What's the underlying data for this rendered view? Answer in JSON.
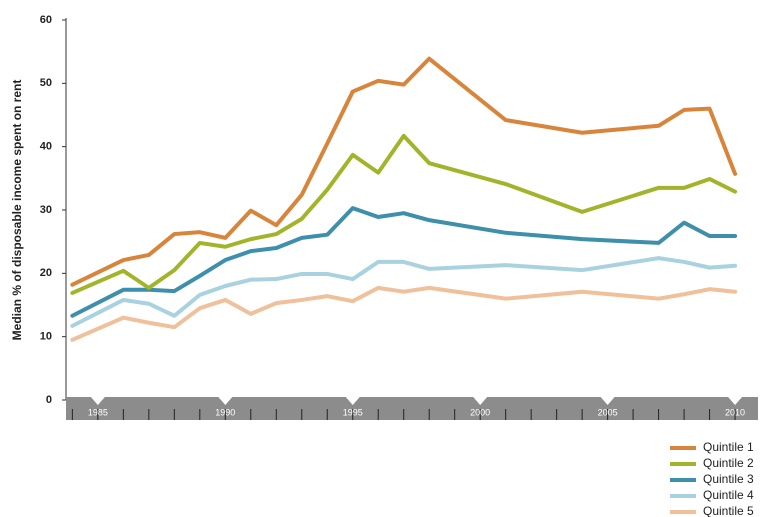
{
  "chart_data": {
    "type": "line",
    "y_label": "Median % of disposable income spent on rent",
    "x": [
      1984,
      1986,
      1987,
      1988,
      1989,
      1990,
      1991,
      1992,
      1993,
      1994,
      1995,
      1996,
      1997,
      1998,
      2001,
      2004,
      2007,
      2008,
      2009,
      2010
    ],
    "series": [
      {
        "name": "Quintile 1",
        "color": "#d9843b",
        "values": [
          18.2,
          22.1,
          22.9,
          26.2,
          26.5,
          25.6,
          29.9,
          27.6,
          32.4,
          40.5,
          48.7,
          50.4,
          49.8,
          53.9,
          44.2,
          42.2,
          43.3,
          45.8,
          46.0,
          35.7
        ]
      },
      {
        "name": "Quintile 2",
        "color": "#a2b42a",
        "values": [
          16.9,
          20.4,
          17.7,
          20.5,
          24.8,
          24.2,
          25.4,
          26.2,
          28.6,
          33.2,
          38.7,
          35.9,
          41.7,
          37.4,
          34.1,
          29.7,
          33.5,
          33.5,
          34.9,
          32.9
        ]
      },
      {
        "name": "Quintile 3",
        "color": "#3d8fab",
        "values": [
          13.3,
          17.4,
          17.4,
          17.2,
          19.6,
          22.1,
          23.5,
          24.0,
          25.6,
          26.1,
          30.3,
          28.9,
          29.5,
          28.4,
          26.4,
          25.4,
          24.8,
          28.0,
          25.9,
          25.9
        ]
      },
      {
        "name": "Quintile 4",
        "color": "#a8d2e0",
        "values": [
          11.7,
          15.8,
          15.2,
          13.3,
          16.6,
          18.0,
          19.0,
          19.1,
          19.9,
          19.9,
          19.1,
          21.8,
          21.8,
          20.7,
          21.3,
          20.5,
          22.4,
          21.8,
          20.9,
          21.2
        ]
      },
      {
        "name": "Quintile 5",
        "color": "#efc09a",
        "values": [
          9.5,
          13.0,
          12.2,
          11.5,
          14.5,
          15.8,
          13.6,
          15.3,
          15.8,
          16.4,
          15.6,
          17.7,
          17.1,
          17.7,
          16.0,
          17.1,
          16.0,
          16.7,
          17.5,
          17.1
        ]
      }
    ],
    "xlim": [
      1983.75,
      2010.9
    ],
    "xticks": [
      1985,
      1990,
      1995,
      2000,
      2005,
      2010
    ],
    "xminorticks": [
      1984,
      1985,
      1986,
      1987,
      1988,
      1989,
      1990,
      1991,
      1992,
      1993,
      1994,
      1995,
      1996,
      1997,
      1998,
      1999,
      2000,
      2001,
      2002,
      2003,
      2004,
      2005,
      2006,
      2007,
      2008,
      2009,
      2010
    ],
    "ylim": [
      0,
      60
    ],
    "yticks": [
      0,
      10,
      20,
      30,
      40,
      50,
      60
    ],
    "legend": "bottom-right"
  }
}
